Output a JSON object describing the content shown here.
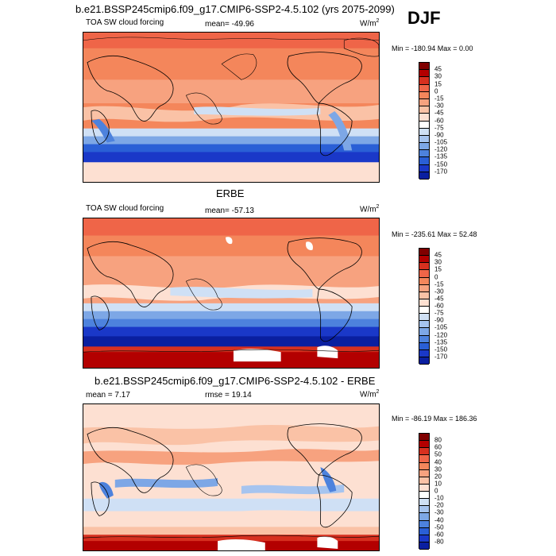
{
  "season": "DJF",
  "panels": [
    {
      "id": "model",
      "heading": "b.e21.BSSP245cmip6.f09_g17.CMIP6-SSP2-4.5.102 (yrs 2075-2099)",
      "left_label": "TOA SW cloud forcing",
      "center_label": "mean= -49.96",
      "units_base": "W/m",
      "units_exp": "2",
      "minmax": "Min = -180.94 Max =   0.00",
      "colorbar_labels": [
        "45",
        "30",
        "15",
        "0",
        "-15",
        "-30",
        "-45",
        "-60",
        "-75",
        "-90",
        "-105",
        "-120",
        "-135",
        "-150",
        "-170"
      ],
      "colorbar_colors": [
        "#800000",
        "#b30000",
        "#d7301f",
        "#ef6548",
        "#f4865b",
        "#f7a27f",
        "#fac2a6",
        "#fde0d2",
        "#ffffff",
        "#cfe0f5",
        "#a6c4ef",
        "#7da7e6",
        "#4d82dd",
        "#2a5fd6",
        "#1a38c8",
        "#0a1fa0"
      ]
    },
    {
      "id": "obs",
      "heading": "ERBE",
      "left_label": "TOA SW cloud forcing",
      "center_label": "mean= -57.13",
      "units_base": "W/m",
      "units_exp": "2",
      "minmax": "Min = -235.61 Max =  52.48",
      "colorbar_labels": [
        "45",
        "30",
        "15",
        "0",
        "-15",
        "-30",
        "-45",
        "-60",
        "-75",
        "-90",
        "-105",
        "-120",
        "-135",
        "-150",
        "-170"
      ],
      "colorbar_colors": [
        "#800000",
        "#b30000",
        "#d7301f",
        "#ef6548",
        "#f4865b",
        "#f7a27f",
        "#fac2a6",
        "#fde0d2",
        "#ffffff",
        "#cfe0f5",
        "#a6c4ef",
        "#7da7e6",
        "#4d82dd",
        "#2a5fd6",
        "#1a38c8",
        "#0a1fa0"
      ]
    },
    {
      "id": "diff",
      "heading": "b.e21.BSSP245cmip6.f09_g17.CMIP6-SSP2-4.5.102 - ERBE",
      "left_label": "mean =   7.17",
      "center_label": "rmse =  19.14",
      "units_base": "W/m",
      "units_exp": "2",
      "minmax": "Min = -86.19 Max = 186.36",
      "colorbar_labels": [
        "80",
        "60",
        "50",
        "40",
        "30",
        "20",
        "10",
        "0",
        "-10",
        "-20",
        "-30",
        "-40",
        "-50",
        "-60",
        "-80"
      ],
      "colorbar_colors": [
        "#800000",
        "#b30000",
        "#d7301f",
        "#ef6548",
        "#f4865b",
        "#f7a27f",
        "#fac2a6",
        "#fde0d2",
        "#ffffff",
        "#cfe0f5",
        "#a6c4ef",
        "#7da7e6",
        "#4d82dd",
        "#2a5fd6",
        "#1a38c8",
        "#0a1fa0"
      ]
    }
  ]
}
